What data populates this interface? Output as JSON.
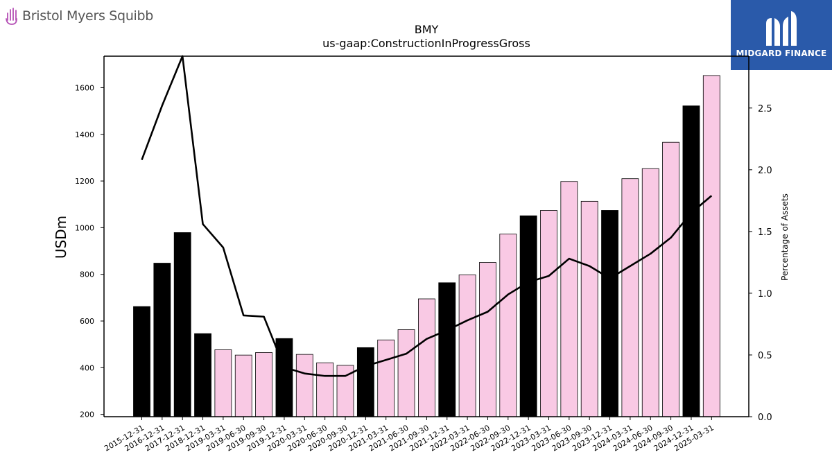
{
  "branding": {
    "left_logo_text": "Bristol Myers Squibb",
    "right_logo_text": "MIDGARD FINANCE",
    "left_logo_icon": "bms-hand-icon",
    "right_logo_icon": "midgard-emblem-icon",
    "right_logo_bg": "#2a5aaa"
  },
  "chart_data": {
    "type": "bar",
    "title": "BMY",
    "subtitle": "us-gaap:ConstructionInProgressGross",
    "ylabel": "USDm",
    "y2label": "Percentage of Assets",
    "ylim": [
      190,
      1735
    ],
    "y2lim": [
      0,
      2.92
    ],
    "yticks": [
      200,
      400,
      600,
      800,
      1000,
      1200,
      1400,
      1600
    ],
    "y2ticks": [
      "0.0",
      "0.5",
      "1.0",
      "1.5",
      "2.0",
      "2.5"
    ],
    "categories": [
      "2015-12-31",
      "2016-12-31",
      "2017-12-31",
      "2018-12-31",
      "2019-03-31",
      "2019-06-30",
      "2019-09-30",
      "2019-12-31",
      "2020-03-31",
      "2020-06-30",
      "2020-09-30",
      "2020-12-31",
      "2021-03-31",
      "2021-06-30",
      "2021-09-30",
      "2021-12-31",
      "2022-03-31",
      "2022-06-30",
      "2022-09-30",
      "2022-12-31",
      "2023-03-31",
      "2023-06-30",
      "2023-09-30",
      "2023-12-31",
      "2024-03-31",
      "2024-06-30",
      "2024-09-30",
      "2024-12-31",
      "2025-03-31"
    ],
    "values": [
      662,
      848,
      979,
      546,
      477,
      454,
      465,
      525,
      457,
      421,
      410,
      486,
      519,
      563,
      695,
      764,
      798,
      851,
      973,
      1051,
      1074,
      1198,
      1113,
      1074,
      1210,
      1253,
      1366,
      1522,
      1652
    ],
    "bar_types": [
      "annual",
      "annual",
      "annual",
      "annual",
      "quarterly",
      "quarterly",
      "quarterly",
      "annual",
      "quarterly",
      "quarterly",
      "quarterly",
      "annual",
      "quarterly",
      "quarterly",
      "quarterly",
      "annual",
      "quarterly",
      "quarterly",
      "quarterly",
      "annual",
      "quarterly",
      "quarterly",
      "quarterly",
      "annual",
      "quarterly",
      "quarterly",
      "quarterly",
      "annual",
      "quarterly"
    ],
    "line_series": {
      "axis": "right",
      "values": [
        2.08,
        2.52,
        2.92,
        1.56,
        1.37,
        0.82,
        0.81,
        0.4,
        0.35,
        0.33,
        0.33,
        0.41,
        0.46,
        0.51,
        0.63,
        0.7,
        0.78,
        0.85,
        0.99,
        1.09,
        1.14,
        1.28,
        1.22,
        1.12,
        1.22,
        1.32,
        1.45,
        1.65,
        1.79
      ]
    },
    "colors": {
      "annual_bar": "#000000",
      "quarterly_bar": "#f9c9e4",
      "bar_edge": "#000000",
      "line": "#000000"
    },
    "grid": false
  }
}
